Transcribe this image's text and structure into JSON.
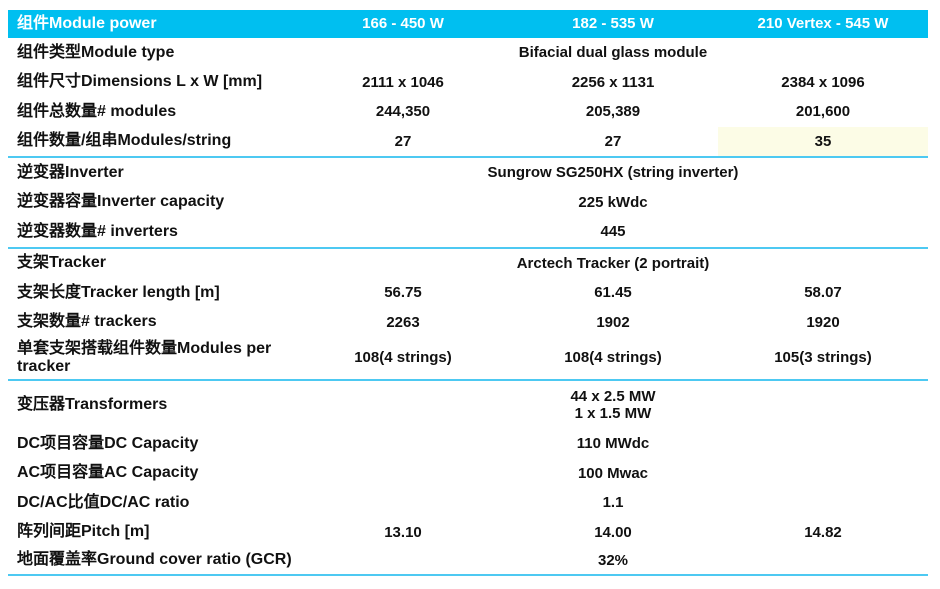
{
  "colors": {
    "header_bg": "#00BFF0",
    "divider": "#4DC9F2",
    "highlight_cell_bg": "#FCFCE6",
    "header_text": "#FFFFFF",
    "body_text": "#111111"
  },
  "header": {
    "label": "组件Module power",
    "columns": [
      "166 - 450 W",
      "182 - 535 W",
      "210 Vertex - 545 W"
    ]
  },
  "rows": [
    {
      "label": "组件类型Module type",
      "value": "Bifacial dual glass module"
    },
    {
      "label": "组件尺寸Dimensions L x W [mm]",
      "values": [
        "2111 x 1046",
        "2256 x 1131",
        "2384 x 1096"
      ]
    },
    {
      "label": "组件总数量# modules",
      "values": [
        "244,350",
        "205,389",
        "201,600"
      ]
    },
    {
      "label": "组件数量/组串Modules/string",
      "values": [
        "27",
        "27",
        "35"
      ],
      "highlighted_column": 3
    },
    {
      "label": "逆变器Inverter",
      "value": "Sungrow SG250HX (string inverter)"
    },
    {
      "label": "逆变器容量Inverter capacity",
      "value": "225 kWdc"
    },
    {
      "label": "逆变器数量# inverters",
      "value": "445"
    },
    {
      "label": "支架Tracker",
      "value": "Arctech Tracker (2 portrait)"
    },
    {
      "label": "支架长度Tracker length [m]",
      "values": [
        "56.75",
        "61.45",
        "58.07"
      ]
    },
    {
      "label": "支架数量# trackers",
      "values": [
        "2263",
        "1902",
        "1920"
      ]
    },
    {
      "label": "单套支架搭载组件数量Modules per tracker",
      "values": [
        "108(4 strings)",
        "108(4 strings)",
        "105(3 strings)"
      ]
    },
    {
      "label": "变压器Transformers",
      "value": "44 x 2.5 MW\n1 x 1.5 MW"
    },
    {
      "label": "DC项目容量DC Capacity",
      "value": "110 MWdc"
    },
    {
      "label": "AC项目容量AC Capacity",
      "value": "100 Mwac"
    },
    {
      "label": "DC/AC比值DC/AC ratio",
      "value": "1.1"
    },
    {
      "label": "阵列间距Pitch [m]",
      "values": [
        "13.10",
        "14.00",
        "14.82"
      ]
    },
    {
      "label": "地面覆盖率Ground cover ratio (GCR)",
      "value": "32%"
    }
  ]
}
